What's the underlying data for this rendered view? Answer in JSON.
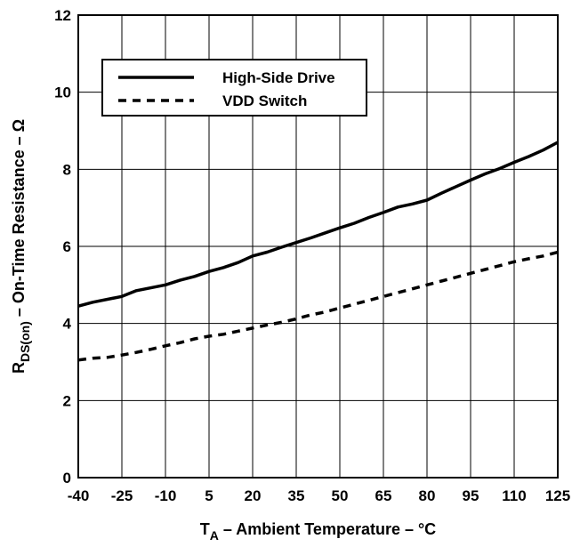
{
  "chart_data": {
    "type": "line",
    "title": "",
    "x_ticks": [
      "-40",
      "-25",
      "-10",
      "5",
      "20",
      "35",
      "50",
      "65",
      "80",
      "95",
      "110",
      "125"
    ],
    "y_ticks": [
      "0",
      "2",
      "4",
      "6",
      "8",
      "10",
      "12"
    ],
    "xlim": [
      -40,
      125
    ],
    "ylim": [
      0,
      12
    ],
    "grid": true,
    "legend_position": "top-left",
    "xlabel": {
      "main": "T",
      "sub": "A",
      "rest": " – Ambient Temperature – °C"
    },
    "ylabel": {
      "main": "R",
      "sub": "DS(on)",
      "rest": " – On-Time Resistance – Ω"
    },
    "series": [
      {
        "name": "High-Side Drive",
        "style": "solid",
        "color": "#000000",
        "x": [
          -40,
          -35,
          -25,
          -20,
          -10,
          -5,
          0,
          5,
          10,
          15,
          20,
          25,
          30,
          35,
          40,
          45,
          50,
          55,
          60,
          65,
          70,
          75,
          80,
          85,
          90,
          95,
          100,
          105,
          110,
          115,
          120,
          125
        ],
        "y": [
          4.45,
          4.55,
          4.7,
          4.85,
          5.0,
          5.12,
          5.22,
          5.35,
          5.45,
          5.58,
          5.75,
          5.85,
          5.98,
          6.1,
          6.22,
          6.35,
          6.48,
          6.6,
          6.75,
          6.88,
          7.02,
          7.1,
          7.2,
          7.38,
          7.55,
          7.72,
          7.88,
          8.02,
          8.18,
          8.33,
          8.5,
          8.7
        ]
      },
      {
        "name": "VDD Switch",
        "style": "dashed",
        "color": "#000000",
        "x": [
          -40,
          -35,
          -30,
          -25,
          -20,
          -15,
          -10,
          -5,
          0,
          5,
          10,
          15,
          20,
          25,
          30,
          35,
          40,
          45,
          50,
          55,
          60,
          65,
          70,
          75,
          80,
          85,
          90,
          95,
          100,
          105,
          110,
          115,
          120,
          125
        ],
        "y": [
          3.05,
          3.1,
          3.12,
          3.18,
          3.25,
          3.33,
          3.42,
          3.5,
          3.6,
          3.67,
          3.72,
          3.8,
          3.88,
          3.96,
          4.03,
          4.12,
          4.22,
          4.3,
          4.4,
          4.5,
          4.6,
          4.7,
          4.8,
          4.9,
          5.0,
          5.1,
          5.2,
          5.3,
          5.4,
          5.5,
          5.6,
          5.68,
          5.75,
          5.85
        ]
      }
    ]
  }
}
